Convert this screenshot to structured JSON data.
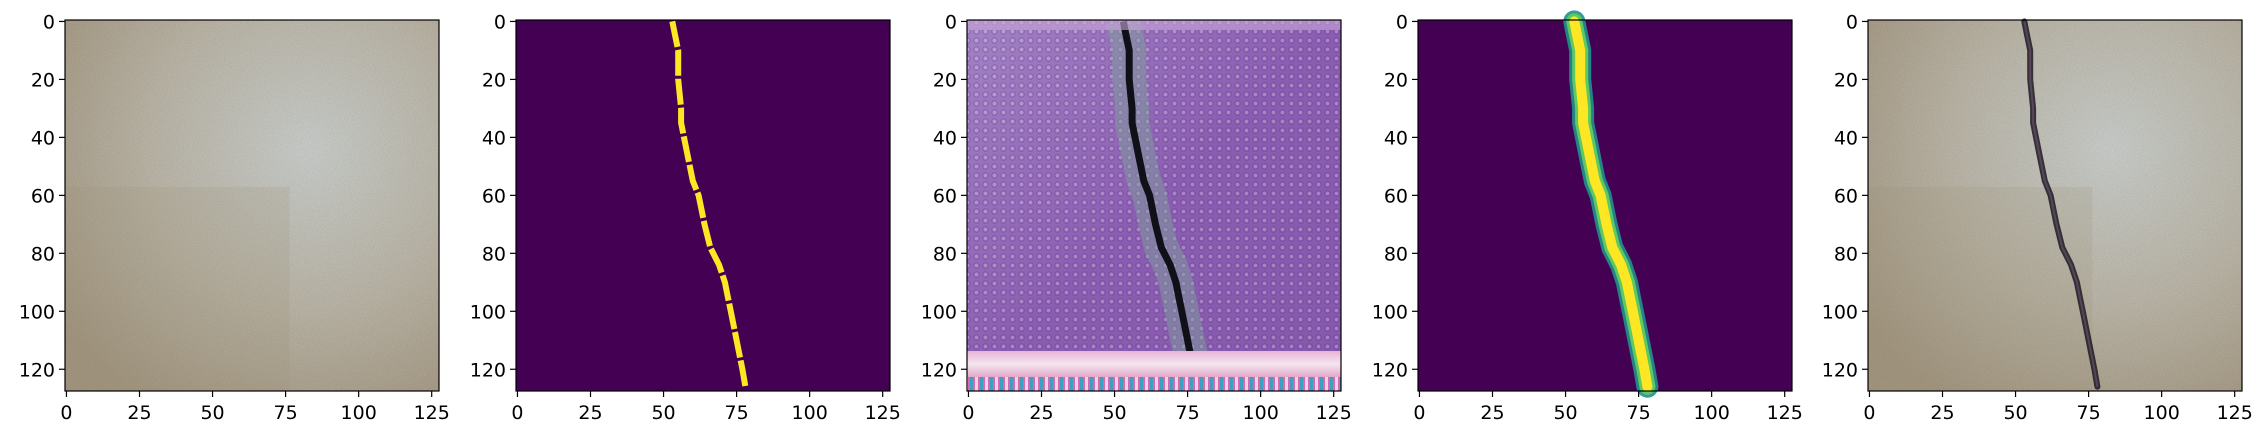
{
  "figure": {
    "panels": [
      {
        "id": "input-image",
        "content": "concrete surface texture, no visible crack"
      },
      {
        "id": "ground-truth-mask",
        "content": "binary crack mask, yellow crack on purple background"
      },
      {
        "id": "generated-image",
        "content": "purple-tinted synthetic crack image with artifacts"
      },
      {
        "id": "predicted-mask",
        "content": "soft crack mask, yellow-green crack on purple background"
      },
      {
        "id": "overlay-image",
        "content": "concrete surface with dark crack"
      }
    ],
    "axes": {
      "x_ticks": [
        "0",
        "25",
        "50",
        "75",
        "100",
        "125"
      ],
      "y_ticks": [
        "0",
        "20",
        "40",
        "60",
        "80",
        "100",
        "120"
      ],
      "xlim": [
        -0.5,
        127.5
      ],
      "ylim": [
        127.5,
        -0.5
      ]
    },
    "crack_path": {
      "x": [
        53,
        54,
        55,
        55,
        56,
        56,
        57,
        58,
        60,
        62,
        64,
        66,
        69,
        71,
        72,
        73,
        74,
        75,
        76,
        77,
        78
      ],
      "y": [
        0,
        5,
        10,
        20,
        30,
        35,
        40,
        45,
        55,
        60,
        70,
        78,
        84,
        90,
        95,
        100,
        105,
        110,
        115,
        120,
        126
      ]
    },
    "colors": {
      "viridis_low": "#440154",
      "viridis_high": "#fde725",
      "concrete_light": "#c7c9c4",
      "concrete_warm": "#b3a58e",
      "purple_tint": "#9a6fc2",
      "crack_dark": "#1a1a22"
    }
  }
}
